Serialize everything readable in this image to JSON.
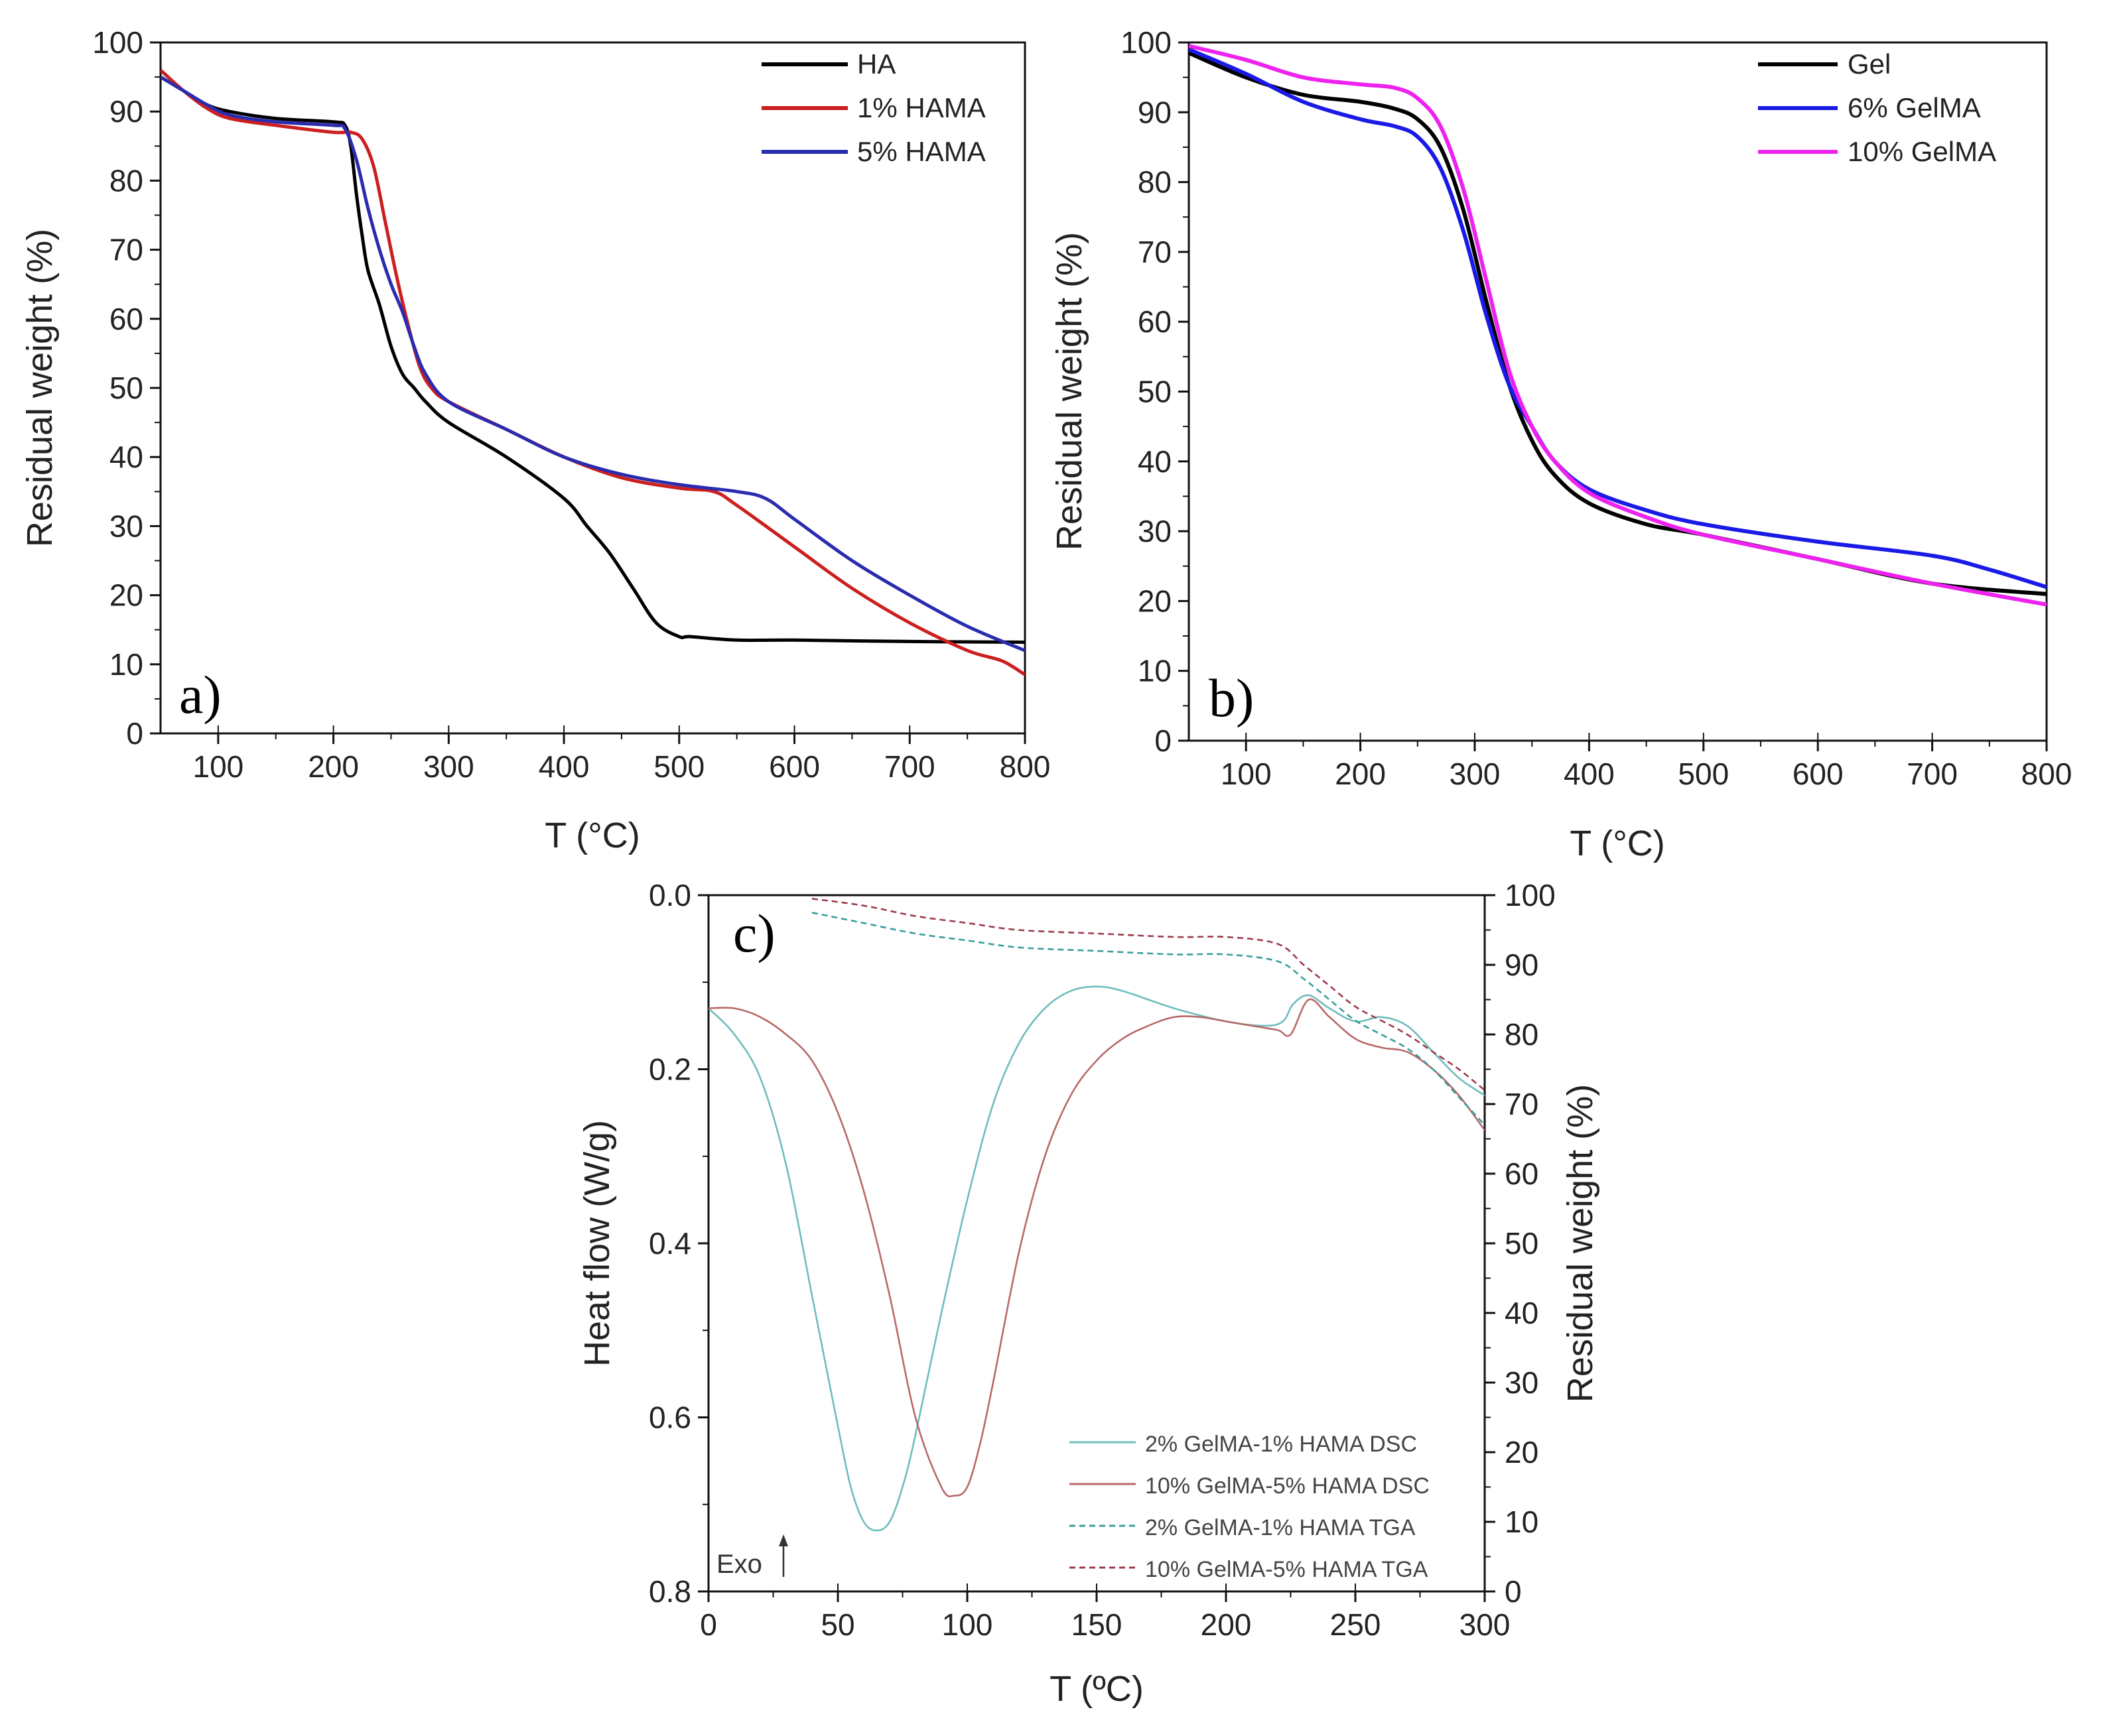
{
  "chart_data": [
    {
      "panel": "a)",
      "type": "line",
      "xlabel": "T (°C)",
      "ylabel": "Residual weight (%)",
      "xlim": [
        50,
        800
      ],
      "ylim": [
        0,
        100
      ],
      "xticks": [
        100,
        200,
        300,
        400,
        500,
        600,
        700,
        800
      ],
      "yticks": [
        0,
        10,
        20,
        30,
        40,
        50,
        60,
        70,
        80,
        90,
        100
      ],
      "legend_position": "top-right",
      "grid": false,
      "series": [
        {
          "name": "HA",
          "color": "#000000",
          "x": [
            50,
            70,
            90,
            110,
            150,
            200,
            210,
            215,
            220,
            225,
            230,
            240,
            250,
            260,
            270,
            280,
            300,
            350,
            400,
            420,
            440,
            460,
            480,
            500,
            510,
            550,
            600,
            700,
            800
          ],
          "y": [
            95,
            93,
            91,
            90,
            89,
            88.5,
            88,
            85,
            78,
            72,
            67,
            62,
            56,
            52,
            50,
            48,
            45,
            40,
            34,
            30,
            26,
            21,
            16,
            14,
            14,
            13.5,
            13.5,
            13.3,
            13.2
          ]
        },
        {
          "name": "1% HAMA",
          "color": "#cc1f1f",
          "x": [
            50,
            70,
            90,
            110,
            150,
            200,
            215,
            225,
            235,
            245,
            255,
            265,
            275,
            285,
            300,
            350,
            400,
            450,
            500,
            530,
            550,
            600,
            650,
            700,
            750,
            780,
            800
          ],
          "y": [
            96,
            93,
            90.5,
            89,
            88,
            87,
            87,
            86,
            82,
            74,
            66,
            59,
            53,
            50,
            48,
            44,
            40,
            37,
            35.5,
            35,
            33,
            27,
            21,
            16,
            12,
            10.5,
            8.5
          ]
        },
        {
          "name": "5% HAMA",
          "color": "#2b2bb0",
          "x": [
            50,
            70,
            90,
            110,
            150,
            200,
            210,
            220,
            230,
            240,
            250,
            260,
            270,
            280,
            300,
            350,
            400,
            450,
            500,
            550,
            575,
            600,
            650,
            700,
            750,
            800
          ],
          "y": [
            95,
            93,
            91,
            89.5,
            88.5,
            88,
            87.5,
            83,
            76,
            70,
            65,
            61,
            56,
            52,
            48,
            44,
            40,
            37.5,
            36,
            35,
            34,
            31,
            25,
            20,
            15.5,
            12
          ]
        }
      ]
    },
    {
      "panel": "b)",
      "type": "line",
      "xlabel": "T (°C)",
      "ylabel": "Residual weight (%)",
      "xlim": [
        50,
        800
      ],
      "ylim": [
        0,
        100
      ],
      "xticks": [
        100,
        200,
        300,
        400,
        500,
        600,
        700,
        800
      ],
      "yticks": [
        0,
        10,
        20,
        30,
        40,
        50,
        60,
        70,
        80,
        90,
        100
      ],
      "legend_position": "top-right",
      "grid": false,
      "series": [
        {
          "name": "Gel",
          "color": "#000000",
          "x": [
            50,
            100,
            150,
            200,
            230,
            250,
            270,
            290,
            310,
            330,
            350,
            370,
            400,
            450,
            500,
            600,
            700,
            800
          ],
          "y": [
            98.5,
            95,
            92.5,
            91.5,
            90.5,
            89,
            85,
            76,
            63,
            51,
            43,
            38,
            34,
            31,
            29.5,
            26,
            22.5,
            21
          ]
        },
        {
          "name": "6% GelMA",
          "color": "#1a1ae6",
          "x": [
            50,
            100,
            150,
            200,
            230,
            250,
            270,
            290,
            310,
            330,
            350,
            370,
            400,
            450,
            500,
            600,
            700,
            750,
            800
          ],
          "y": [
            99,
            95.5,
            91.5,
            89,
            88,
            86.5,
            82,
            73,
            61,
            51,
            45,
            40,
            36,
            33,
            31,
            28.5,
            26.5,
            24.5,
            22
          ]
        },
        {
          "name": "10% GelMA",
          "color": "#ee22ee",
          "x": [
            50,
            100,
            150,
            200,
            230,
            250,
            270,
            290,
            310,
            330,
            350,
            370,
            400,
            450,
            500,
            600,
            700,
            800
          ],
          "y": [
            99.5,
            97.5,
            95,
            94,
            93.5,
            92,
            88,
            79,
            66,
            53,
            45,
            40,
            35.5,
            32,
            29.5,
            26,
            22.5,
            19.5
          ]
        }
      ]
    },
    {
      "panel": "c)",
      "type": "line",
      "xlabel": "T (ºC)",
      "ylabel": "Heat flow (W/g)",
      "y2label": "Residual weight (%)",
      "xlim": [
        0,
        300
      ],
      "ylim": [
        0.8,
        0.0
      ],
      "y2lim": [
        0,
        100
      ],
      "xticks": [
        0,
        50,
        100,
        150,
        200,
        250,
        300
      ],
      "yticks": [
        0.0,
        0.2,
        0.4,
        0.6,
        0.8
      ],
      "y2ticks": [
        0,
        10,
        20,
        30,
        40,
        50,
        60,
        70,
        80,
        90,
        100
      ],
      "legend_position": "bottom-right",
      "annotation": "Exo",
      "grid": false,
      "series": [
        {
          "name": "2% GelMA-1% HAMA DSC",
          "color": "#6fbcbc",
          "dash": "solid",
          "axis": "left",
          "x": [
            0,
            10,
            20,
            30,
            40,
            50,
            55,
            60,
            65,
            70,
            75,
            80,
            90,
            100,
            110,
            120,
            130,
            140,
            150,
            160,
            180,
            200,
            215,
            222,
            226,
            232,
            240,
            250,
            260,
            270,
            280,
            290,
            300
          ],
          "y": [
            0.13,
            0.16,
            0.21,
            0.31,
            0.46,
            0.61,
            0.68,
            0.72,
            0.73,
            0.72,
            0.68,
            0.62,
            0.48,
            0.35,
            0.24,
            0.17,
            0.13,
            0.11,
            0.105,
            0.11,
            0.13,
            0.145,
            0.15,
            0.145,
            0.125,
            0.115,
            0.13,
            0.145,
            0.14,
            0.15,
            0.18,
            0.21,
            0.23
          ]
        },
        {
          "name": "10% GelMA-5% HAMA DSC",
          "color": "#b86868",
          "dash": "solid",
          "axis": "left",
          "x": [
            0,
            10,
            20,
            30,
            40,
            50,
            60,
            70,
            80,
            90,
            95,
            100,
            105,
            110,
            120,
            130,
            140,
            150,
            160,
            170,
            180,
            190,
            200,
            210,
            220,
            225,
            232,
            240,
            250,
            260,
            270,
            280,
            290,
            300
          ],
          "y": [
            0.13,
            0.13,
            0.14,
            0.16,
            0.19,
            0.25,
            0.34,
            0.46,
            0.6,
            0.68,
            0.69,
            0.68,
            0.63,
            0.56,
            0.41,
            0.3,
            0.23,
            0.19,
            0.165,
            0.15,
            0.14,
            0.14,
            0.145,
            0.15,
            0.155,
            0.16,
            0.12,
            0.14,
            0.165,
            0.175,
            0.18,
            0.2,
            0.23,
            0.27
          ]
        },
        {
          "name": "2% GelMA-1% HAMA TGA",
          "color": "#3a9c9c",
          "dash": "dashed",
          "axis": "right",
          "x": [
            40,
            60,
            80,
            100,
            120,
            150,
            180,
            200,
            220,
            230,
            240,
            250,
            260,
            270,
            280,
            290,
            300
          ],
          "y": [
            97.5,
            96,
            94.5,
            93.5,
            92.5,
            92,
            91.5,
            91.5,
            90.5,
            88,
            85,
            82,
            80,
            78,
            75,
            71,
            67
          ]
        },
        {
          "name": "10% GelMA-5% HAMA TGA",
          "color": "#9b3a4a",
          "dash": "dashed",
          "axis": "right",
          "x": [
            40,
            60,
            80,
            100,
            120,
            150,
            180,
            200,
            220,
            230,
            240,
            250,
            260,
            270,
            280,
            290,
            300
          ],
          "y": [
            99.5,
            98.5,
            97,
            96,
            95,
            94.5,
            94,
            94,
            93,
            90,
            87,
            84,
            82,
            80,
            77.5,
            75,
            72
          ]
        }
      ]
    }
  ]
}
